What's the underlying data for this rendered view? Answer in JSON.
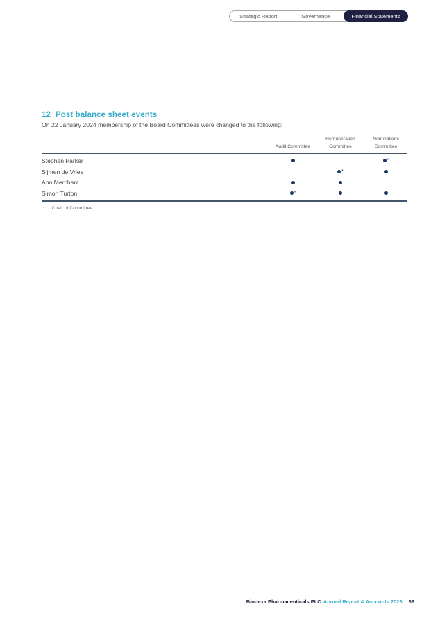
{
  "tabs": {
    "items": [
      {
        "label": "Strategic Report",
        "active": false
      },
      {
        "label": "Governance",
        "active": false
      },
      {
        "label": "Financial Statements",
        "active": true
      }
    ]
  },
  "section": {
    "number": "12",
    "title": "Post balance sheet events",
    "intro": "On 22 January 2024 membership of the Board Committees were changed to the following:"
  },
  "table": {
    "columns": [
      "Audit Committee",
      "Remuneration\nCommittee",
      "Nominations\nCommittee"
    ],
    "rows": [
      {
        "name": "Stephen Parker",
        "audit": "member",
        "remuneration": "",
        "nominations": "chair"
      },
      {
        "name": "Sijmen de Vries",
        "audit": "",
        "remuneration": "chair",
        "nominations": "member"
      },
      {
        "name": "Ann Merchant",
        "audit": "member",
        "remuneration": "member",
        "nominations": ""
      },
      {
        "name": "Simon Turton",
        "audit": "chair",
        "remuneration": "member",
        "nominations": "member"
      }
    ],
    "chair_marker": "*"
  },
  "footnote": {
    "symbol": "*",
    "text": "Chair of Committee"
  },
  "footer": {
    "company": "Biodexa Pharmaceuticals PLC",
    "report": "Annual Report & Accounts 2023",
    "page": "89"
  },
  "colors": {
    "accent_teal": "#3badcb",
    "navy": "#1e2142",
    "dot_navy": "#1c3565",
    "rule": "#44546a"
  }
}
